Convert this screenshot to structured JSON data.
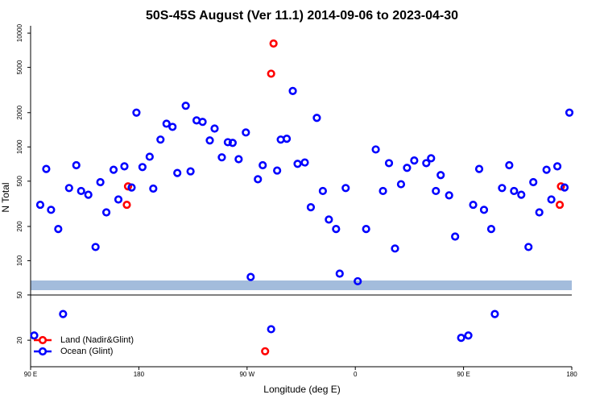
{
  "chart_data": {
    "type": "scatter",
    "title": "50S-45S August (Ver 11.1)   2014-09-06 to 2023-04-30",
    "x_label": "Longitude (deg E)",
    "y_label": "N Total",
    "xlim": [
      90,
      540
    ],
    "xticks": [
      {
        "value": 90,
        "label": "90 E"
      },
      180,
      {
        "value": 270,
        "label": "90 W"
      },
      {
        "value": 360,
        "label": "0"
      },
      {
        "value": 450,
        "label": "90 E"
      },
      {
        "value": 540,
        "label": "180"
      }
    ],
    "ylim": [
      11.7,
      11600
    ],
    "y_log": true,
    "yticks": [
      20,
      50,
      100,
      200,
      500,
      1000,
      2000,
      5000,
      10000
    ],
    "legend": "bottom-left",
    "series": [
      {
        "name": "Land (Nadir&Glint)",
        "color": "#ff0000",
        "x": [
          170,
          171,
          290,
          292,
          530,
          531,
          285
        ],
        "values": [
          310,
          450,
          4400,
          8100,
          310,
          450,
          16
        ]
      },
      {
        "name": "Ocean (Glint)",
        "color": "#0000ff",
        "x": [
          98,
          103,
          107,
          113,
          122,
          128,
          132,
          138,
          144,
          148,
          153,
          159,
          163,
          168,
          174,
          178,
          183,
          189,
          192,
          198,
          203,
          208,
          212,
          219,
          223,
          228,
          233,
          239,
          243,
          249,
          254,
          258,
          263,
          269,
          273,
          279,
          283,
          295,
          298,
          303,
          308,
          312,
          318,
          323,
          328,
          333,
          338,
          344,
          347,
          352,
          362,
          369,
          377,
          383,
          388,
          393,
          398,
          403,
          409,
          419,
          423,
          427,
          431,
          438,
          443,
          458,
          463,
          467,
          473,
          482,
          488,
          492,
          498,
          504,
          508,
          513,
          519,
          523,
          528,
          534,
          538,
          93,
          117,
          290,
          448,
          454,
          476
        ],
        "values": [
          310,
          640,
          280,
          190,
          435,
          690,
          410,
          380,
          132,
          490,
          266,
          630,
          345,
          675,
          440,
          2000,
          665,
          820,
          430,
          1160,
          1600,
          1500,
          590,
          2300,
          610,
          1710,
          1660,
          1140,
          1450,
          810,
          1100,
          1085,
          780,
          1340,
          72,
          520,
          690,
          620,
          1160,
          1180,
          3100,
          710,
          730,
          295,
          1800,
          410,
          230,
          190,
          77,
          435,
          66,
          190,
          950,
          410,
          720,
          128,
          470,
          655,
          760,
          720,
          795,
          410,
          565,
          375,
          163,
          310,
          640,
          280,
          190,
          435,
          690,
          410,
          380,
          132,
          490,
          266,
          630,
          345,
          675,
          440,
          2000,
          22,
          34,
          25,
          21,
          22,
          34
        ]
      }
    ]
  }
}
